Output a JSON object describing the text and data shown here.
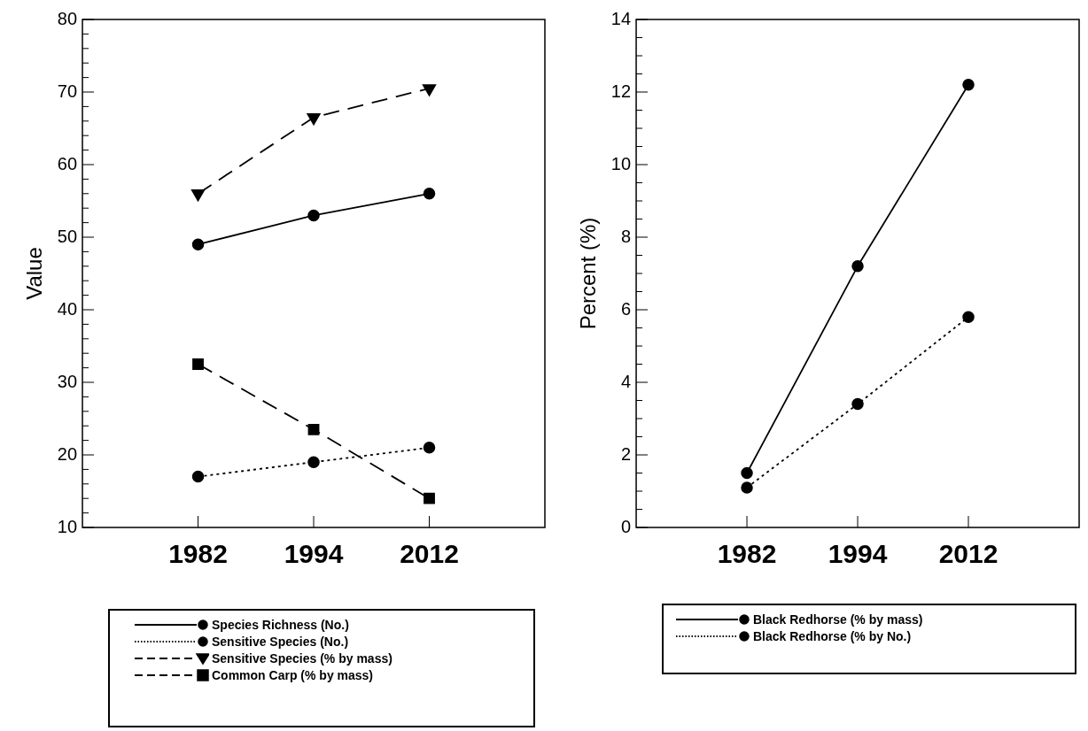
{
  "chart_data": [
    {
      "type": "line",
      "ylabel": "Value",
      "categories": [
        "1982",
        "1994",
        "2012"
      ],
      "ylim": [
        10,
        80
      ],
      "yticks": [
        10,
        {
          "value": 12,
          "label": null
        },
        {
          "value": 14,
          "label": null
        },
        {
          "value": 16,
          "label": null
        },
        {
          "value": 18,
          "label": null
        },
        20,
        {
          "value": 22,
          "label": null
        },
        {
          "value": 24,
          "label": null
        },
        {
          "value": 26,
          "label": null
        },
        {
          "value": 28,
          "label": null
        },
        30,
        {
          "value": 32,
          "label": null
        },
        {
          "value": 34,
          "label": null
        },
        {
          "value": 36,
          "label": null
        },
        {
          "value": 38,
          "label": null
        },
        40,
        {
          "value": 42,
          "label": null
        },
        {
          "value": 44,
          "label": null
        },
        {
          "value": 46,
          "label": null
        },
        {
          "value": 48,
          "label": null
        },
        50,
        {
          "value": 52,
          "label": null
        },
        {
          "value": 54,
          "label": null
        },
        {
          "value": 56,
          "label": null
        },
        {
          "value": 58,
          "label": null
        },
        60,
        {
          "value": 62,
          "label": null
        },
        {
          "value": 64,
          "label": null
        },
        {
          "value": 66,
          "label": null
        },
        {
          "value": 68,
          "label": null
        },
        70,
        {
          "value": 72,
          "label": null
        },
        {
          "value": 74,
          "label": null
        },
        {
          "value": 76,
          "label": null
        },
        {
          "value": 78,
          "label": null
        },
        80
      ],
      "grid": false,
      "legend": "bottom",
      "series": [
        {
          "name": "Species Richness (No.)",
          "color": "#000000",
          "values": [
            49,
            53,
            56
          ],
          "marker": "circle",
          "line_style": "solid"
        },
        {
          "name": "Sensitive Species (No.)",
          "color": "#000000",
          "values": [
            17,
            19,
            21
          ],
          "marker": "circle",
          "line_style": "dotted"
        },
        {
          "name": "Sensitive Species (% by mass)",
          "color": "#000000",
          "values": [
            56,
            66.5,
            70.5
          ],
          "marker": "triangle",
          "line_style": "dashed"
        },
        {
          "name": "Common Carp (% by mass)",
          "color": "#000000",
          "values": [
            32.5,
            23.5,
            14
          ],
          "marker": "square",
          "line_style": "dashed"
        }
      ]
    },
    {
      "type": "line",
      "ylabel": "Percent (%)",
      "categories": [
        "1982",
        "1994",
        "2012"
      ],
      "ylim": [
        0,
        14
      ],
      "yticks": [
        0,
        {
          "value": 0.5,
          "label": null
        },
        {
          "value": 1,
          "label": null
        },
        {
          "value": 1.5,
          "label": null
        },
        2,
        {
          "value": 2.5,
          "label": null
        },
        {
          "value": 3,
          "label": null
        },
        {
          "value": 3.5,
          "label": null
        },
        4,
        {
          "value": 4.5,
          "label": null
        },
        {
          "value": 5,
          "label": null
        },
        {
          "value": 5.5,
          "label": null
        },
        6,
        {
          "value": 6.5,
          "label": null
        },
        {
          "value": 7,
          "label": null
        },
        {
          "value": 7.5,
          "label": null
        },
        8,
        {
          "value": 8.5,
          "label": null
        },
        {
          "value": 9,
          "label": null
        },
        {
          "value": 9.5,
          "label": null
        },
        10,
        {
          "value": 10.5,
          "label": null
        },
        {
          "value": 11,
          "label": null
        },
        {
          "value": 11.5,
          "label": null
        },
        12,
        {
          "value": 12.5,
          "label": null
        },
        {
          "value": 13,
          "label": null
        },
        {
          "value": 13.5,
          "label": null
        },
        14
      ],
      "grid": false,
      "legend": "bottom",
      "series": [
        {
          "name": "Black Redhorse (% by mass)",
          "color": "#000000",
          "values": [
            1.5,
            7.2,
            12.2
          ],
          "marker": "circle",
          "line_style": "solid"
        },
        {
          "name": "Black Redhorse (% by No.)",
          "color": "#000000",
          "values": [
            1.1,
            3.4,
            5.8
          ],
          "marker": "circle",
          "line_style": "dotted"
        }
      ]
    }
  ]
}
